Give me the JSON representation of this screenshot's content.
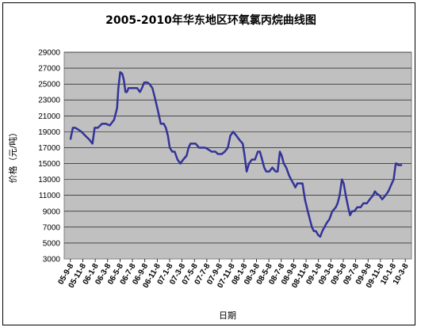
{
  "chart_data": {
    "type": "line",
    "title": "2005-2010年华东地区环氧氯丙烷曲线图",
    "xlabel": "日期",
    "ylabel": "价格（元/吨）",
    "ylim": [
      3000,
      29000
    ],
    "yticks": [
      3000,
      5000,
      7000,
      9000,
      11000,
      13000,
      15000,
      17000,
      19000,
      21000,
      23000,
      25000,
      27000,
      29000
    ],
    "grid": true,
    "legend": "none",
    "x_tick_labels": [
      "05-9-8",
      "05-11-8",
      "06-1-8",
      "06-3-8",
      "06-5-8",
      "06-7-8",
      "06-9-8",
      "06-11-8",
      "07-1-8",
      "07-3-8",
      "07-5-8",
      "07-7-8",
      "07-9-8",
      "07-11-8",
      "08-1-8",
      "08-3-8",
      "08-5-8",
      "08-7-8",
      "08-9-8",
      "08-11-8",
      "09-1-8",
      "09-3-8",
      "09-5-8",
      "09-7-8",
      "09-9-8",
      "09-11-8",
      "10-1-8",
      "10-3-8"
    ],
    "colors": {
      "line": "#333399",
      "plot_background": "#c0c0c0",
      "grid": "#000000"
    },
    "series": [
      {
        "x": [
          "2005-09-08",
          "2005-09-20",
          "2005-10-01",
          "2005-10-15",
          "2005-11-01",
          "2005-11-20",
          "2005-12-10",
          "2005-12-25",
          "2006-01-05",
          "2006-01-20",
          "2006-02-10",
          "2006-03-01",
          "2006-03-20",
          "2006-04-10",
          "2006-04-25",
          "2006-05-01",
          "2006-05-10",
          "2006-05-20",
          "2006-05-28",
          "2006-06-05",
          "2006-06-12",
          "2006-06-20",
          "2006-07-01",
          "2006-07-15",
          "2006-08-01",
          "2006-08-15",
          "2006-08-25",
          "2006-09-05",
          "2006-09-20",
          "2006-10-01",
          "2006-10-15",
          "2006-10-25",
          "2006-11-08",
          "2006-11-25",
          "2006-12-10",
          "2006-12-20",
          "2006-12-30",
          "2007-01-08",
          "2007-01-20",
          "2007-02-01",
          "2007-02-15",
          "2007-03-01",
          "2007-03-15",
          "2007-04-01",
          "2007-04-10",
          "2007-04-20",
          "2007-05-01",
          "2007-05-15",
          "2007-06-01",
          "2007-06-15",
          "2007-07-01",
          "2007-07-15",
          "2007-08-01",
          "2007-08-20",
          "2007-09-01",
          "2007-09-20",
          "2007-10-05",
          "2007-10-20",
          "2007-11-01",
          "2007-11-15",
          "2007-12-01",
          "2007-12-15",
          "2008-01-01",
          "2008-01-10",
          "2008-01-20",
          "2008-02-01",
          "2008-02-15",
          "2008-03-01",
          "2008-03-15",
          "2008-03-25",
          "2008-04-05",
          "2008-04-15",
          "2008-04-25",
          "2008-05-10",
          "2008-05-25",
          "2008-06-10",
          "2008-06-20",
          "2008-07-01",
          "2008-07-10",
          "2008-07-20",
          "2008-08-01",
          "2008-08-15",
          "2008-08-25",
          "2008-09-05",
          "2008-09-15",
          "2008-09-25",
          "2008-10-05",
          "2008-10-20",
          "2008-11-01",
          "2008-11-15",
          "2008-11-25",
          "2008-12-05",
          "2008-12-15",
          "2008-12-25",
          "2009-01-05",
          "2009-01-15",
          "2009-01-25",
          "2009-02-05",
          "2009-02-15",
          "2009-03-01",
          "2009-03-15",
          "2009-04-01",
          "2009-04-10",
          "2009-04-20",
          "2009-05-01",
          "2009-05-10",
          "2009-05-20",
          "2009-06-01",
          "2009-06-10",
          "2009-06-20",
          "2009-07-01",
          "2009-07-15",
          "2009-08-01",
          "2009-08-15",
          "2009-09-01",
          "2009-09-15",
          "2009-10-01",
          "2009-10-10",
          "2009-10-20",
          "2009-11-01",
          "2009-11-15",
          "2009-12-01",
          "2009-12-15",
          "2010-01-01",
          "2010-01-10",
          "2010-01-20",
          "2010-01-25",
          "2010-02-01",
          "2010-02-10",
          "2010-02-20"
        ],
        "values": [
          18000,
          19500,
          19500,
          19300,
          19000,
          18500,
          18000,
          17500,
          19500,
          19500,
          20000,
          20000,
          19800,
          20500,
          22000,
          24500,
          26500,
          26300,
          25500,
          24000,
          24000,
          24500,
          24500,
          24500,
          24500,
          24000,
          24500,
          25200,
          25200,
          25000,
          24500,
          23500,
          22000,
          20000,
          20000,
          19500,
          18500,
          17000,
          16500,
          16500,
          15500,
          15000,
          15500,
          16000,
          17000,
          17500,
          17500,
          17500,
          17000,
          17000,
          17000,
          16800,
          16500,
          16500,
          16200,
          16200,
          16500,
          17000,
          18500,
          19000,
          18500,
          18000,
          17500,
          16000,
          14000,
          15000,
          15500,
          15500,
          16500,
          16500,
          15500,
          14500,
          14000,
          14000,
          14500,
          14000,
          14000,
          16500,
          16000,
          15000,
          14500,
          13500,
          13000,
          12500,
          12000,
          12500,
          12500,
          12500,
          10500,
          9000,
          8000,
          7000,
          6500,
          6500,
          6000,
          5800,
          6500,
          7000,
          7500,
          8000,
          9000,
          9500,
          10000,
          11000,
          13000,
          12500,
          11000,
          9500,
          8500,
          9000,
          9000,
          9500,
          9500,
          10000,
          10000,
          10500,
          11000,
          11500,
          11200,
          11000,
          10500,
          11000,
          11500,
          12500,
          13000,
          15000,
          15000,
          14800,
          14800,
          14800
        ]
      }
    ]
  }
}
